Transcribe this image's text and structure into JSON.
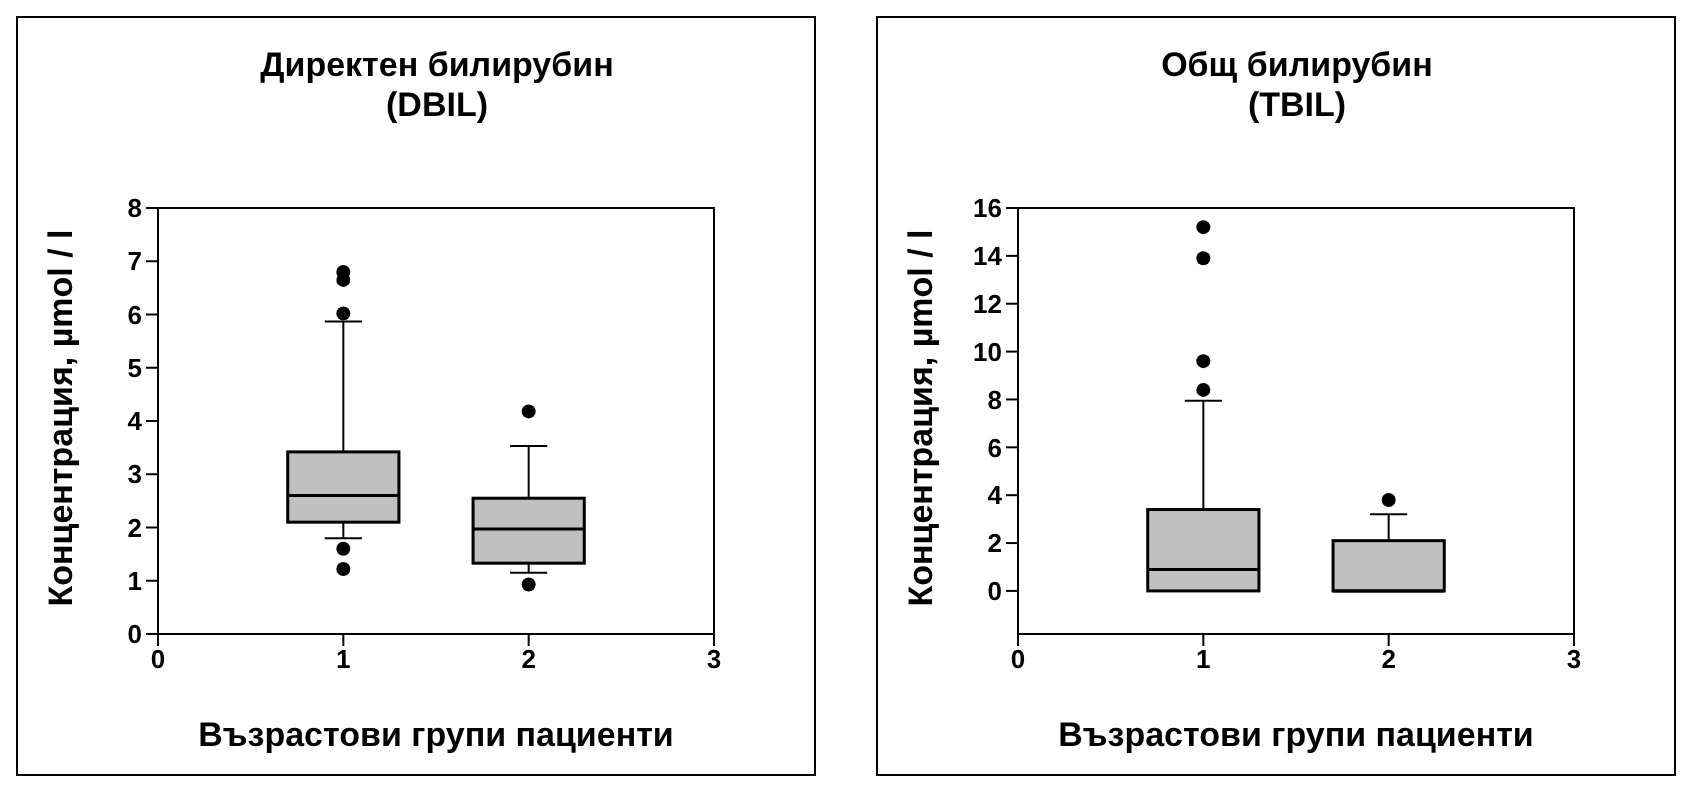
{
  "chart_data": [
    {
      "type": "box",
      "title": "Директен билирубин (DBIL)",
      "xlabel": "Възрастови групи пациенти",
      "ylabel": "Концентрация, µmol / l",
      "categories": [
        "0",
        "1",
        "2",
        "3"
      ],
      "ylim": [
        0,
        8
      ],
      "yticks": [
        0,
        1,
        2,
        3,
        4,
        5,
        6,
        7,
        8
      ],
      "color": "#c0c0c0",
      "grid": false,
      "boxes": [
        null,
        {
          "low": 1.8,
          "q1": 2.1,
          "median": 2.6,
          "q3": 3.42,
          "high": 5.87,
          "outliers": [
            6.8,
            6.65,
            6.02,
            1.6,
            1.22
          ]
        },
        {
          "low": 1.15,
          "q1": 1.33,
          "median": 1.97,
          "q3": 2.55,
          "high": 3.53,
          "outliers": [
            4.18,
            0.93
          ]
        },
        null
      ]
    },
    {
      "type": "box",
      "title": "Общ билирубин (TBIL)",
      "xlabel": "Възрастови групи пациенти",
      "ylabel": "Концентрация, µmol / l",
      "categories": [
        "0",
        "1",
        "2",
        "3"
      ],
      "ylim": [
        -1.8,
        16
      ],
      "yticks": [
        0,
        2,
        4,
        6,
        8,
        10,
        12,
        14,
        16
      ],
      "color": "#c0c0c0",
      "grid": false,
      "boxes": [
        null,
        {
          "low": 0,
          "q1": 0,
          "median": 0.9,
          "q3": 3.4,
          "high": 7.95,
          "outliers": [
            15.2,
            13.9,
            9.6,
            8.4
          ]
        },
        {
          "low": 0,
          "q1": 0,
          "median": 0,
          "q3": 2.1,
          "high": 3.2,
          "outliers": [
            3.8
          ]
        },
        null
      ]
    }
  ]
}
